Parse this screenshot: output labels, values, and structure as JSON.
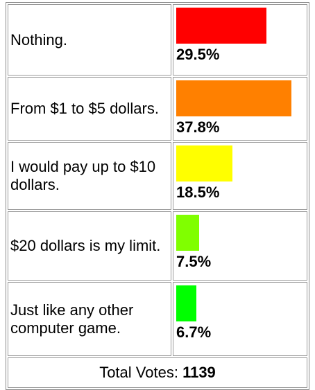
{
  "chart_data": {
    "type": "bar",
    "categories": [
      "Nothing.",
      "From $1 to $5 dollars.",
      "I would pay up to $10 dollars.",
      "$20 dollars is my limit.",
      "Just like any other computer game."
    ],
    "values": [
      29.5,
      37.8,
      18.5,
      7.5,
      6.7
    ],
    "value_labels": [
      "29.5%",
      "37.8%",
      "18.5%",
      "7.5%",
      "6.7%"
    ],
    "colors": [
      "#ff0000",
      "#ff8000",
      "#ffff00",
      "#80ff00",
      "#00ff00"
    ],
    "total_label": "Total Votes:",
    "total": 1139
  }
}
